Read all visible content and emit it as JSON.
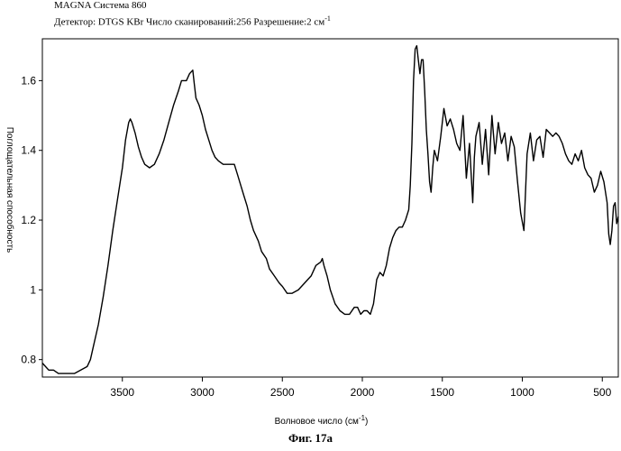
{
  "header": {
    "line1": "MAGNA Система 860",
    "line2_prefix": "Детектор: DTGS KBr Число сканирований:256 Разрешение:2 см",
    "line2_sup": "-1"
  },
  "caption": "Фиг. 17а",
  "chart_data": {
    "type": "line",
    "xlabel": "Волновое число (см-1)",
    "xlabel_main": "Волновое число (см",
    "xlabel_sup": "-1",
    "xlabel_end": ")",
    "ylabel": "Поглощательная способность",
    "xlim": [
      4000,
      400
    ],
    "ylim": [
      0.75,
      1.72
    ],
    "x_reversed": true,
    "grid": false,
    "x_ticks": [
      3500,
      3000,
      2500,
      2000,
      1500,
      1000,
      500
    ],
    "x_tick_labels": [
      "3500",
      "3000",
      "2500",
      "2000",
      "1500",
      "1000",
      "500"
    ],
    "y_ticks": [
      0.8,
      1.0,
      1.2,
      1.4,
      1.6
    ],
    "y_tick_labels": [
      "0.8",
      "1",
      "1.2",
      "1.4",
      "1.6"
    ],
    "series": [
      {
        "points": [
          [
            4000,
            0.79
          ],
          [
            3980,
            0.78
          ],
          [
            3960,
            0.77
          ],
          [
            3930,
            0.77
          ],
          [
            3900,
            0.76
          ],
          [
            3870,
            0.76
          ],
          [
            3840,
            0.76
          ],
          [
            3800,
            0.76
          ],
          [
            3760,
            0.77
          ],
          [
            3720,
            0.78
          ],
          [
            3700,
            0.8
          ],
          [
            3680,
            0.84
          ],
          [
            3650,
            0.9
          ],
          [
            3620,
            0.98
          ],
          [
            3590,
            1.07
          ],
          [
            3560,
            1.17
          ],
          [
            3530,
            1.26
          ],
          [
            3500,
            1.35
          ],
          [
            3480,
            1.43
          ],
          [
            3460,
            1.48
          ],
          [
            3450,
            1.49
          ],
          [
            3440,
            1.48
          ],
          [
            3420,
            1.45
          ],
          [
            3400,
            1.41
          ],
          [
            3380,
            1.38
          ],
          [
            3360,
            1.36
          ],
          [
            3330,
            1.35
          ],
          [
            3300,
            1.36
          ],
          [
            3270,
            1.39
          ],
          [
            3240,
            1.43
          ],
          [
            3210,
            1.48
          ],
          [
            3180,
            1.53
          ],
          [
            3150,
            1.57
          ],
          [
            3130,
            1.6
          ],
          [
            3100,
            1.6
          ],
          [
            3080,
            1.62
          ],
          [
            3060,
            1.63
          ],
          [
            3050,
            1.59
          ],
          [
            3040,
            1.55
          ],
          [
            3020,
            1.53
          ],
          [
            3000,
            1.5
          ],
          [
            2980,
            1.46
          ],
          [
            2960,
            1.43
          ],
          [
            2940,
            1.4
          ],
          [
            2920,
            1.38
          ],
          [
            2900,
            1.37
          ],
          [
            2870,
            1.36
          ],
          [
            2850,
            1.36
          ],
          [
            2830,
            1.36
          ],
          [
            2800,
            1.36
          ],
          [
            2780,
            1.33
          ],
          [
            2760,
            1.3
          ],
          [
            2740,
            1.27
          ],
          [
            2720,
            1.24
          ],
          [
            2700,
            1.2
          ],
          [
            2680,
            1.17
          ],
          [
            2650,
            1.14
          ],
          [
            2630,
            1.11
          ],
          [
            2600,
            1.09
          ],
          [
            2580,
            1.06
          ],
          [
            2550,
            1.04
          ],
          [
            2520,
            1.02
          ],
          [
            2500,
            1.01
          ],
          [
            2470,
            0.99
          ],
          [
            2440,
            0.99
          ],
          [
            2400,
            1.0
          ],
          [
            2360,
            1.02
          ],
          [
            2320,
            1.04
          ],
          [
            2290,
            1.07
          ],
          [
            2260,
            1.08
          ],
          [
            2250,
            1.09
          ],
          [
            2240,
            1.07
          ],
          [
            2220,
            1.04
          ],
          [
            2200,
            1.0
          ],
          [
            2170,
            0.96
          ],
          [
            2140,
            0.94
          ],
          [
            2110,
            0.93
          ],
          [
            2080,
            0.93
          ],
          [
            2050,
            0.95
          ],
          [
            2030,
            0.95
          ],
          [
            2010,
            0.93
          ],
          [
            1990,
            0.94
          ],
          [
            1970,
            0.94
          ],
          [
            1950,
            0.93
          ],
          [
            1930,
            0.96
          ],
          [
            1910,
            1.03
          ],
          [
            1890,
            1.05
          ],
          [
            1870,
            1.04
          ],
          [
            1850,
            1.07
          ],
          [
            1830,
            1.12
          ],
          [
            1810,
            1.15
          ],
          [
            1790,
            1.17
          ],
          [
            1770,
            1.18
          ],
          [
            1750,
            1.18
          ],
          [
            1730,
            1.2
          ],
          [
            1710,
            1.23
          ],
          [
            1700,
            1.3
          ],
          [
            1690,
            1.42
          ],
          [
            1680,
            1.6
          ],
          [
            1670,
            1.69
          ],
          [
            1660,
            1.7
          ],
          [
            1650,
            1.66
          ],
          [
            1640,
            1.62
          ],
          [
            1630,
            1.66
          ],
          [
            1620,
            1.66
          ],
          [
            1610,
            1.57
          ],
          [
            1600,
            1.46
          ],
          [
            1590,
            1.39
          ],
          [
            1580,
            1.31
          ],
          [
            1570,
            1.28
          ],
          [
            1560,
            1.35
          ],
          [
            1550,
            1.4
          ],
          [
            1530,
            1.37
          ],
          [
            1510,
            1.44
          ],
          [
            1490,
            1.52
          ],
          [
            1470,
            1.47
          ],
          [
            1450,
            1.49
          ],
          [
            1430,
            1.46
          ],
          [
            1410,
            1.42
          ],
          [
            1390,
            1.4
          ],
          [
            1370,
            1.5
          ],
          [
            1350,
            1.32
          ],
          [
            1330,
            1.42
          ],
          [
            1310,
            1.25
          ],
          [
            1300,
            1.38
          ],
          [
            1290,
            1.44
          ],
          [
            1270,
            1.48
          ],
          [
            1250,
            1.36
          ],
          [
            1230,
            1.46
          ],
          [
            1210,
            1.33
          ],
          [
            1190,
            1.5
          ],
          [
            1170,
            1.39
          ],
          [
            1150,
            1.48
          ],
          [
            1130,
            1.42
          ],
          [
            1110,
            1.45
          ],
          [
            1090,
            1.37
          ],
          [
            1070,
            1.44
          ],
          [
            1050,
            1.41
          ],
          [
            1030,
            1.31
          ],
          [
            1010,
            1.22
          ],
          [
            990,
            1.17
          ],
          [
            970,
            1.39
          ],
          [
            950,
            1.45
          ],
          [
            930,
            1.37
          ],
          [
            910,
            1.43
          ],
          [
            890,
            1.44
          ],
          [
            870,
            1.38
          ],
          [
            850,
            1.46
          ],
          [
            830,
            1.45
          ],
          [
            810,
            1.44
          ],
          [
            790,
            1.45
          ],
          [
            770,
            1.44
          ],
          [
            750,
            1.42
          ],
          [
            730,
            1.39
          ],
          [
            710,
            1.37
          ],
          [
            690,
            1.36
          ],
          [
            670,
            1.39
          ],
          [
            650,
            1.37
          ],
          [
            630,
            1.4
          ],
          [
            610,
            1.35
          ],
          [
            590,
            1.33
          ],
          [
            570,
            1.32
          ],
          [
            550,
            1.28
          ],
          [
            530,
            1.3
          ],
          [
            510,
            1.34
          ],
          [
            490,
            1.31
          ],
          [
            470,
            1.25
          ],
          [
            460,
            1.16
          ],
          [
            450,
            1.13
          ],
          [
            440,
            1.17
          ],
          [
            430,
            1.24
          ],
          [
            420,
            1.25
          ],
          [
            410,
            1.19
          ],
          [
            400,
            1.21
          ]
        ]
      }
    ]
  }
}
